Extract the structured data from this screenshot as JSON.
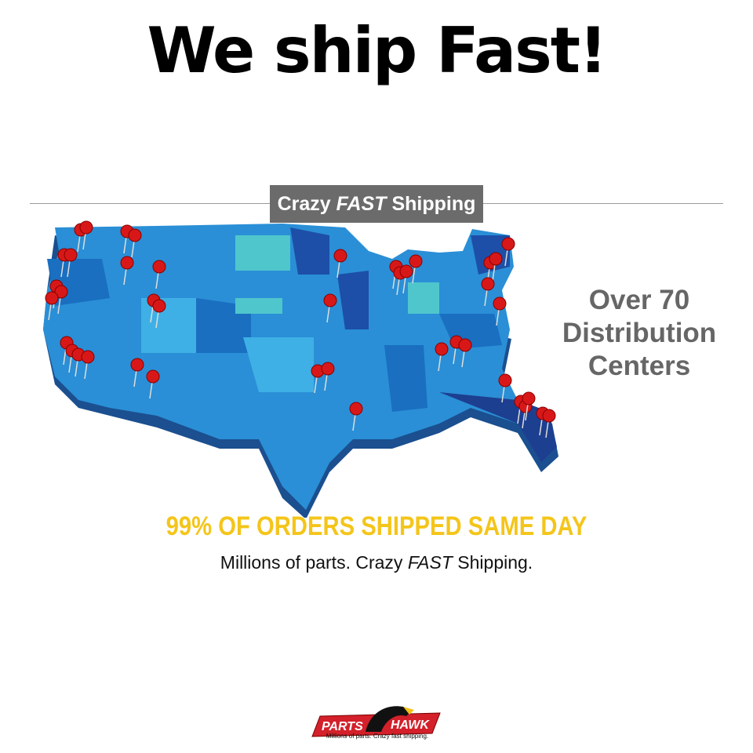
{
  "headline": "We ship Fast!",
  "banner": {
    "part1": "Crazy",
    "part2": "FAST",
    "part3": "Shipping"
  },
  "side_text": {
    "line1": "Over 70",
    "line2": "Distribution",
    "line3": "Centers"
  },
  "same_day": "99% OF ORDERS SHIPPED SAME DAY",
  "subline": {
    "part1": "Millions of parts. Crazy",
    "part2": "FAST",
    "part3": "Shipping."
  },
  "logo": {
    "left": "PARTS",
    "right": "HAWK",
    "tagline": "Millions of parts. Crazy fast shipping."
  },
  "colors": {
    "map_blue": "#2a8fd6",
    "map_dark": "#1f4fa0",
    "pin": "#d81818",
    "yellow": "#f4c51a",
    "banner": "#6b6b6b",
    "logo_red": "#d3202a"
  }
}
